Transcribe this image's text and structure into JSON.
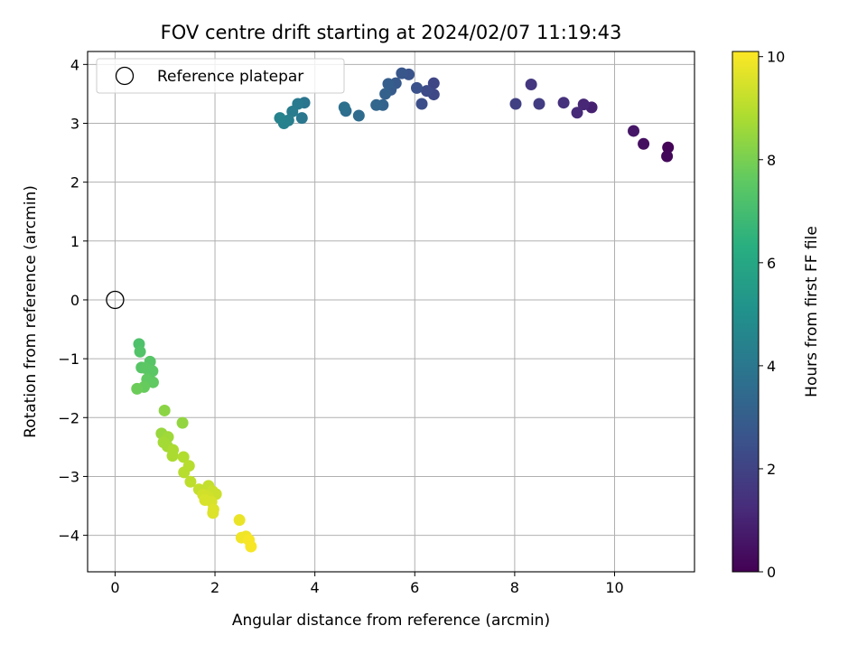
{
  "chart_data": {
    "type": "scatter",
    "title": "FOV centre drift starting at 2024/02/07 11:19:43",
    "xlabel": "Angular distance from reference (arcmin)",
    "ylabel": "Rotation from reference (arcmin)",
    "xlim": [
      -0.55,
      11.6
    ],
    "ylim": [
      -4.62,
      4.22
    ],
    "xticks": [
      0,
      2,
      4,
      6,
      8,
      10
    ],
    "yticks": [
      -4,
      -3,
      -2,
      -1,
      0,
      1,
      2,
      3,
      4
    ],
    "xtick_labels": [
      "0",
      "2",
      "4",
      "6",
      "8",
      "10"
    ],
    "ytick_labels": [
      "−4",
      "−3",
      "−2",
      "−1",
      "0",
      "1",
      "2",
      "3",
      "4"
    ],
    "grid": true,
    "legend": {
      "position": "top-left",
      "entries": [
        {
          "label": "Reference platepar",
          "marker": "open-circle"
        }
      ]
    },
    "reference_point": {
      "x": 0,
      "y": 0
    },
    "colorbar": {
      "label": "Hours from first FF file",
      "colormap": "viridis",
      "range": [
        0,
        10.1
      ],
      "ticks": [
        0,
        2,
        4,
        6,
        8,
        10
      ],
      "tick_labels": [
        "0",
        "2",
        "4",
        "6",
        "8",
        "10"
      ]
    },
    "points": [
      {
        "x": 11.07,
        "y": 2.59,
        "c": 0.1
      },
      {
        "x": 11.05,
        "y": 2.44,
        "c": 0.2
      },
      {
        "x": 10.58,
        "y": 2.65,
        "c": 0.4
      },
      {
        "x": 10.38,
        "y": 2.87,
        "c": 0.6
      },
      {
        "x": 9.54,
        "y": 3.27,
        "c": 0.9
      },
      {
        "x": 9.38,
        "y": 3.32,
        "c": 1.1
      },
      {
        "x": 9.25,
        "y": 3.18,
        "c": 1.2
      },
      {
        "x": 8.98,
        "y": 3.35,
        "c": 1.4
      },
      {
        "x": 8.33,
        "y": 3.66,
        "c": 1.6
      },
      {
        "x": 8.49,
        "y": 3.33,
        "c": 1.8
      },
      {
        "x": 8.02,
        "y": 3.33,
        "c": 1.9
      },
      {
        "x": 6.38,
        "y": 3.68,
        "c": 2.1
      },
      {
        "x": 6.38,
        "y": 3.49,
        "c": 2.2
      },
      {
        "x": 6.24,
        "y": 3.55,
        "c": 2.3
      },
      {
        "x": 6.14,
        "y": 3.33,
        "c": 2.4
      },
      {
        "x": 6.04,
        "y": 3.6,
        "c": 2.5
      },
      {
        "x": 5.88,
        "y": 3.83,
        "c": 2.6
      },
      {
        "x": 5.74,
        "y": 3.85,
        "c": 2.7
      },
      {
        "x": 5.62,
        "y": 3.68,
        "c": 2.8
      },
      {
        "x": 5.52,
        "y": 3.57,
        "c": 2.9
      },
      {
        "x": 5.47,
        "y": 3.67,
        "c": 3.0
      },
      {
        "x": 5.41,
        "y": 3.5,
        "c": 3.1
      },
      {
        "x": 5.36,
        "y": 3.31,
        "c": 3.2
      },
      {
        "x": 5.23,
        "y": 3.31,
        "c": 3.3
      },
      {
        "x": 4.88,
        "y": 3.13,
        "c": 3.5
      },
      {
        "x": 4.62,
        "y": 3.21,
        "c": 3.6
      },
      {
        "x": 4.59,
        "y": 3.27,
        "c": 3.7
      },
      {
        "x": 3.79,
        "y": 3.35,
        "c": 3.9
      },
      {
        "x": 3.74,
        "y": 3.09,
        "c": 4.0
      },
      {
        "x": 3.66,
        "y": 3.33,
        "c": 4.1
      },
      {
        "x": 3.55,
        "y": 3.2,
        "c": 4.2
      },
      {
        "x": 3.47,
        "y": 3.05,
        "c": 4.3
      },
      {
        "x": 3.38,
        "y": 3.0,
        "c": 4.4
      },
      {
        "x": 3.3,
        "y": 3.09,
        "c": 4.5
      },
      {
        "x": 0.48,
        "y": -0.75,
        "c": 7.2
      },
      {
        "x": 0.5,
        "y": -0.88,
        "c": 7.3
      },
      {
        "x": 0.7,
        "y": -1.05,
        "c": 7.4
      },
      {
        "x": 0.53,
        "y": -1.15,
        "c": 7.4
      },
      {
        "x": 0.61,
        "y": -1.16,
        "c": 7.5
      },
      {
        "x": 0.75,
        "y": -1.21,
        "c": 7.5
      },
      {
        "x": 0.64,
        "y": -1.35,
        "c": 7.6
      },
      {
        "x": 0.76,
        "y": -1.4,
        "c": 7.6
      },
      {
        "x": 0.58,
        "y": -1.48,
        "c": 7.7
      },
      {
        "x": 0.44,
        "y": -1.51,
        "c": 7.8
      },
      {
        "x": 0.99,
        "y": -1.88,
        "c": 8.3
      },
      {
        "x": 1.35,
        "y": -2.09,
        "c": 8.4
      },
      {
        "x": 0.93,
        "y": -2.27,
        "c": 8.5
      },
      {
        "x": 1.06,
        "y": -2.33,
        "c": 8.6
      },
      {
        "x": 0.97,
        "y": -2.42,
        "c": 8.7
      },
      {
        "x": 1.05,
        "y": -2.49,
        "c": 8.7
      },
      {
        "x": 1.16,
        "y": -2.55,
        "c": 8.8
      },
      {
        "x": 1.15,
        "y": -2.65,
        "c": 8.8
      },
      {
        "x": 1.37,
        "y": -2.67,
        "c": 8.9
      },
      {
        "x": 1.48,
        "y": -2.82,
        "c": 9.0
      },
      {
        "x": 1.38,
        "y": -2.93,
        "c": 9.0
      },
      {
        "x": 1.51,
        "y": -3.09,
        "c": 9.1
      },
      {
        "x": 1.68,
        "y": -3.22,
        "c": 9.2
      },
      {
        "x": 1.87,
        "y": -3.16,
        "c": 9.2
      },
      {
        "x": 1.95,
        "y": -3.25,
        "c": 9.3
      },
      {
        "x": 2.02,
        "y": -3.3,
        "c": 9.3
      },
      {
        "x": 1.76,
        "y": -3.31,
        "c": 9.4
      },
      {
        "x": 1.86,
        "y": -3.35,
        "c": 9.4
      },
      {
        "x": 1.8,
        "y": -3.4,
        "c": 9.5
      },
      {
        "x": 1.93,
        "y": -3.43,
        "c": 9.5
      },
      {
        "x": 1.97,
        "y": -3.56,
        "c": 9.6
      },
      {
        "x": 1.96,
        "y": -3.62,
        "c": 9.6
      },
      {
        "x": 2.49,
        "y": -3.74,
        "c": 9.8
      },
      {
        "x": 2.53,
        "y": -4.04,
        "c": 9.9
      },
      {
        "x": 2.62,
        "y": -4.02,
        "c": 9.9
      },
      {
        "x": 2.68,
        "y": -4.08,
        "c": 10.0
      },
      {
        "x": 2.72,
        "y": -4.19,
        "c": 10.0
      }
    ]
  }
}
